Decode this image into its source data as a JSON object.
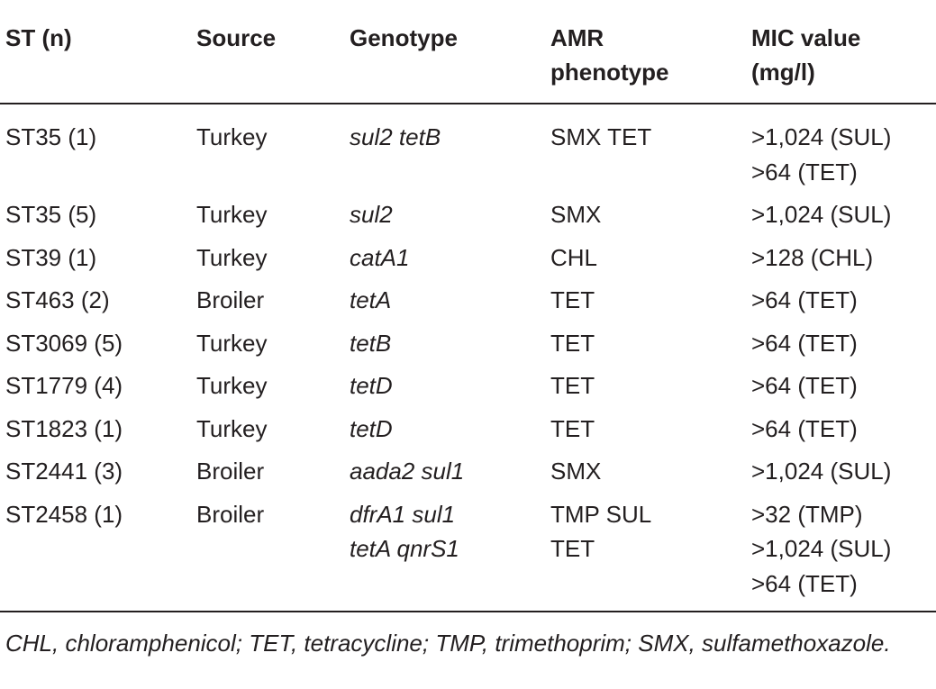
{
  "header": [
    [
      "ST (n)"
    ],
    [
      "Source"
    ],
    [
      "Genotype"
    ],
    [
      "AMR",
      "phenotype"
    ],
    [
      "MIC value",
      "(mg/l)"
    ]
  ],
  "rows": [
    [
      [
        "ST35 (1)"
      ],
      [
        "Turkey"
      ],
      [
        "sul2 tetB"
      ],
      [
        "SMX TET"
      ],
      [
        ">1,024 (SUL)",
        ">64 (TET)"
      ]
    ],
    [
      [
        "ST35 (5)"
      ],
      [
        "Turkey"
      ],
      [
        "sul2"
      ],
      [
        "SMX"
      ],
      [
        ">1,024 (SUL)"
      ]
    ],
    [
      [
        "ST39 (1)"
      ],
      [
        "Turkey"
      ],
      [
        "catA1"
      ],
      [
        "CHL"
      ],
      [
        ">128 (CHL)"
      ]
    ],
    [
      [
        "ST463 (2)"
      ],
      [
        "Broiler"
      ],
      [
        "tetA"
      ],
      [
        "TET"
      ],
      [
        ">64 (TET)"
      ]
    ],
    [
      [
        "ST3069 (5)"
      ],
      [
        "Turkey"
      ],
      [
        "tetB"
      ],
      [
        "TET"
      ],
      [
        ">64 (TET)"
      ]
    ],
    [
      [
        "ST1779 (4)"
      ],
      [
        "Turkey"
      ],
      [
        "tetD"
      ],
      [
        "TET"
      ],
      [
        ">64 (TET)"
      ]
    ],
    [
      [
        "ST1823 (1)"
      ],
      [
        "Turkey"
      ],
      [
        "tetD"
      ],
      [
        "TET"
      ],
      [
        ">64 (TET)"
      ]
    ],
    [
      [
        "ST2441 (3)"
      ],
      [
        "Broiler"
      ],
      [
        "aada2 sul1"
      ],
      [
        "SMX"
      ],
      [
        ">1,024 (SUL)"
      ]
    ],
    [
      [
        "ST2458 (1)"
      ],
      [
        "Broiler"
      ],
      [
        "dfrA1 sul1",
        "tetA qnrS1"
      ],
      [
        "TMP SUL",
        "TET"
      ],
      [
        ">32 (TMP)",
        ">1,024 (SUL)",
        ">64 (TET)"
      ]
    ]
  ],
  "footnote": "CHL, chloramphenicol; TET, tetracycline; TMP, trimethoprim; SMX, sulfamethoxazole."
}
